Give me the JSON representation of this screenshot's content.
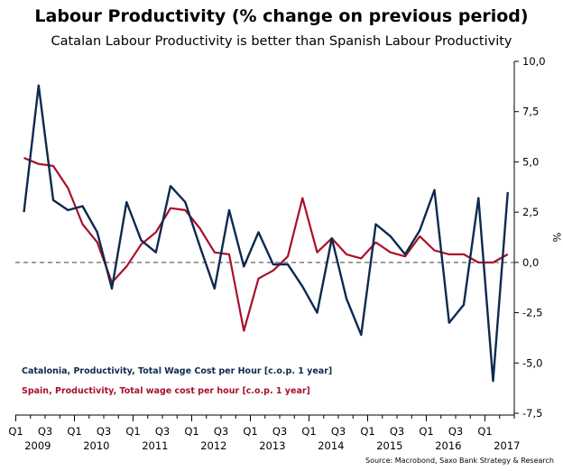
{
  "chart_data": {
    "type": "line",
    "title": "Labour Productivity (% change on previous period)",
    "subtitle": "Catalan Labour Productivity is better than Spanish Labour Productivity",
    "ylabel": "%",
    "ylim": [
      -7.5,
      10.0
    ],
    "yticks": [
      "10,0",
      "7,5",
      "5,0",
      "2,5",
      "0,0",
      "-2,5",
      "-5,0",
      "-7,5"
    ],
    "ytick_values": [
      10.0,
      7.5,
      5.0,
      2.5,
      0.0,
      -2.5,
      -5.0,
      -7.5
    ],
    "x_quarter_labels": [
      "Q1",
      "Q3",
      "Q1",
      "Q3",
      "Q1",
      "Q3",
      "Q1",
      "Q3",
      "Q1",
      "Q3",
      "Q1",
      "Q3",
      "Q1",
      "Q3",
      "Q1",
      "Q3",
      "Q1"
    ],
    "x_year_labels": [
      "2009",
      "2010",
      "2011",
      "2012",
      "2013",
      "2014",
      "2015",
      "2016",
      "2017"
    ],
    "x_start": "2009-Q1",
    "reference_line": 0.0,
    "grid": false,
    "legend_position": "bottom-left",
    "source": "Source: Macrobond, Saxo Bank Strategy & Research",
    "series": [
      {
        "name": "Catalonia, Productivity, Total Wage Cost per Hour [c.o.p. 1 year]",
        "color": "#0d2a4f",
        "values": [
          2.5,
          8.8,
          3.1,
          2.6,
          2.8,
          1.5,
          -1.3,
          3.0,
          1.1,
          0.5,
          3.8,
          3.0,
          0.8,
          -1.3,
          2.6,
          -0.2,
          1.5,
          -0.1,
          -0.1,
          -1.2,
          -2.5,
          1.2,
          -1.8,
          -3.6,
          1.9,
          1.3,
          0.4,
          1.6,
          3.6,
          -3.0,
          -2.1,
          3.2,
          -5.9,
          3.5
        ]
      },
      {
        "name": "Spain, Productivity, Total wage cost per hour [c.o.p. 1 year]",
        "color": "#a8102a",
        "values": [
          5.2,
          4.9,
          4.8,
          3.7,
          1.9,
          1.0,
          -1.0,
          -0.2,
          0.9,
          1.5,
          2.7,
          2.6,
          1.7,
          0.5,
          0.4,
          -3.4,
          -0.8,
          -0.4,
          0.3,
          3.2,
          0.5,
          1.2,
          0.4,
          0.2,
          1.0,
          0.5,
          0.3,
          1.3,
          0.6,
          0.4,
          0.4,
          0.0,
          0.0,
          0.4
        ]
      }
    ]
  }
}
